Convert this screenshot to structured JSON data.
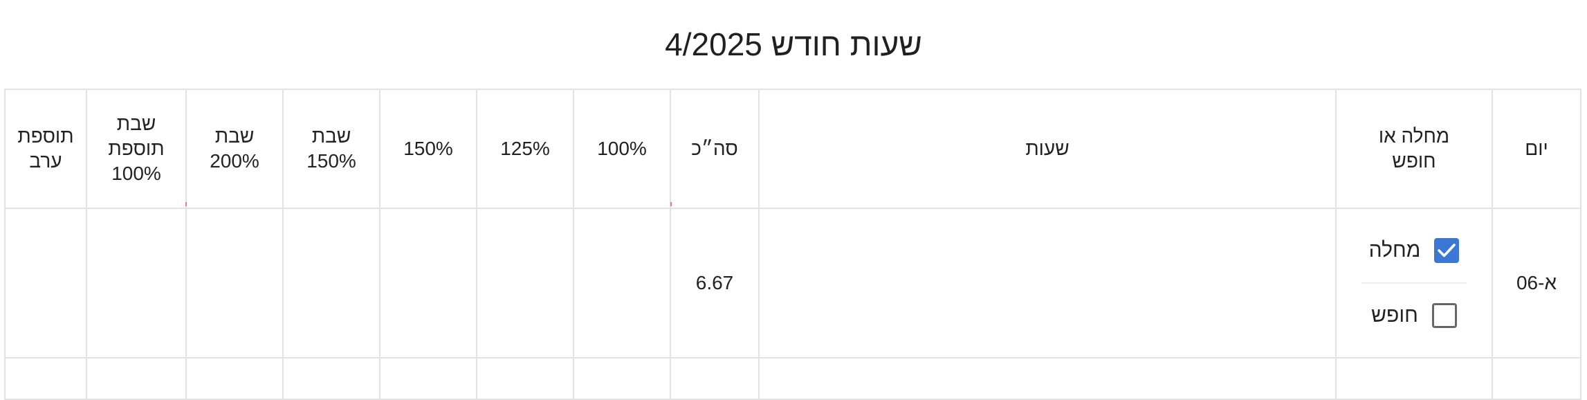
{
  "page": {
    "title": "שעות חודש 4/2025"
  },
  "table": {
    "headers": [
      {
        "key": "day",
        "lines": [
          "יום"
        ]
      },
      {
        "key": "sick_or_vacation",
        "lines": [
          "מחלה או",
          "חופש"
        ]
      },
      {
        "key": "hours",
        "lines": [
          "שעות"
        ]
      },
      {
        "key": "total",
        "lines": [
          "סה״כ"
        ]
      },
      {
        "key": "p100",
        "lines": [
          "100%"
        ]
      },
      {
        "key": "p125",
        "lines": [
          "125%"
        ]
      },
      {
        "key": "p150",
        "lines": [
          "150%"
        ]
      },
      {
        "key": "shabbat150",
        "lines": [
          "שבת",
          "150%"
        ]
      },
      {
        "key": "shabbat200",
        "lines": [
          "שבת",
          "200%"
        ]
      },
      {
        "key": "shabbat_extra100",
        "lines": [
          "שבת",
          "תוספת",
          "100%"
        ]
      },
      {
        "key": "evening_extra",
        "lines": [
          "תוספת",
          "ערב"
        ]
      }
    ],
    "rows": [
      {
        "day": "א-06",
        "sick": {
          "label": "מחלה",
          "checked": true
        },
        "vacation": {
          "label": "חופש",
          "checked": false
        },
        "hours": "",
        "total": "6.67",
        "p100": "",
        "p125": "",
        "p150": "",
        "shabbat150": "",
        "shabbat200": "",
        "shabbat_extra100": "",
        "evening_extra": ""
      }
    ]
  },
  "colors": {
    "checkbox_checked": "#3b78d6",
    "checkbox_border": "#666666",
    "grid_line": "#e2e2e2"
  },
  "icons": {
    "checked": "check-icon"
  }
}
